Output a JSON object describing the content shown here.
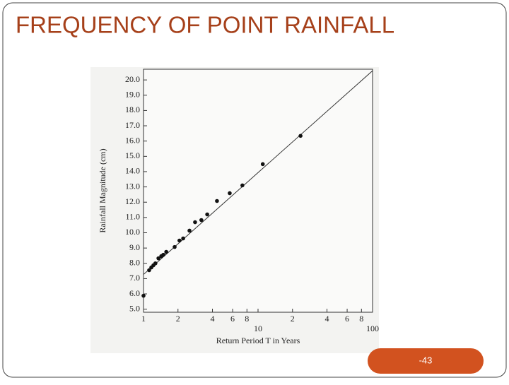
{
  "chart_data": {
    "type": "scatter",
    "title": "FREQUENCY OF POINT RAINFALL",
    "ylabel": "Rainfall Magnitude (cm)",
    "xlabel": "Return Period T in Years",
    "page_number": "-43",
    "x_log": true,
    "color": "#111111",
    "x": [
      1.0,
      1.12,
      1.17,
      1.22,
      1.27,
      1.35,
      1.43,
      1.49,
      1.58,
      1.87,
      2.06,
      2.22,
      2.52,
      2.82,
      3.2,
      3.6,
      4.38,
      5.66,
      7.3,
      11.0,
      23.5
    ],
    "values": [
      5.88,
      7.55,
      7.73,
      7.87,
      8.0,
      8.33,
      8.47,
      8.56,
      8.75,
      9.07,
      9.49,
      9.63,
      10.14,
      10.69,
      10.83,
      11.2,
      12.08,
      12.59,
      13.1,
      14.49,
      16.34
    ],
    "fit": {
      "x": [
        1,
        100
      ],
      "values": [
        7.27,
        20.6
      ]
    },
    "xlim": [
      1,
      100
    ],
    "ylim": [
      4.8,
      20.7
    ],
    "xticks": [
      1,
      2,
      4,
      6,
      8,
      10,
      {
        "value": 20,
        "label": "2"
      },
      {
        "value": 40,
        "label": "4"
      },
      {
        "value": 60,
        "label": "6"
      },
      {
        "value": 80,
        "label": "8"
      },
      100
    ],
    "yticks": [
      {
        "value": 5,
        "label": "5.0"
      },
      {
        "value": 6,
        "label": "6.0"
      },
      {
        "value": 7,
        "label": "7.0"
      },
      {
        "value": 8,
        "label": "8.0"
      },
      {
        "value": 9,
        "label": "9.0"
      },
      {
        "value": 10,
        "label": "10.0"
      },
      {
        "value": 11,
        "label": "11.0"
      },
      {
        "value": 12,
        "label": "12.0"
      },
      {
        "value": 13,
        "label": "13.0"
      },
      {
        "value": 14,
        "label": "14.0"
      },
      {
        "value": 15,
        "label": "15.0"
      },
      {
        "value": 16,
        "label": "16.0"
      },
      {
        "value": 17,
        "label": "17.0"
      },
      {
        "value": 18,
        "label": "18.0"
      },
      {
        "value": 19,
        "label": "19.0"
      },
      {
        "value": 20,
        "label": "20.0"
      }
    ]
  }
}
